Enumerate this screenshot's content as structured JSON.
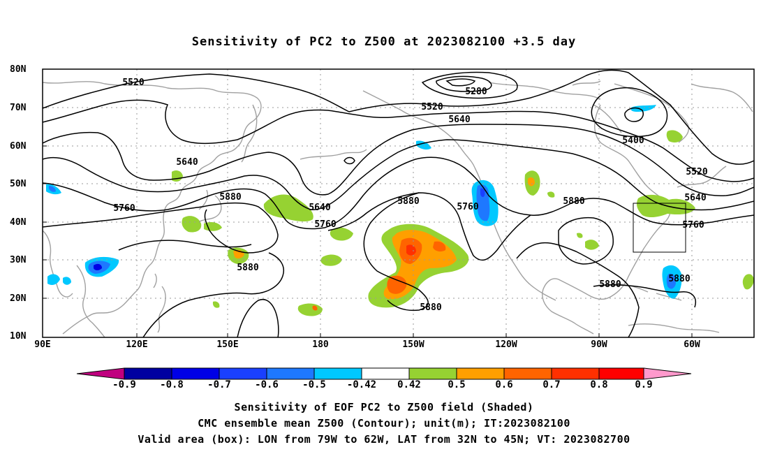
{
  "title": "Sensitivity of PC2 to Z500 at 2023082100 +3.5 day",
  "lat_labels": [
    "80N",
    "70N",
    "60N",
    "50N",
    "40N",
    "30N",
    "20N",
    "10N"
  ],
  "lon_labels": [
    "90E",
    "120E",
    "150E",
    "180",
    "150W",
    "120W",
    "90W",
    "60W"
  ],
  "colorbar": {
    "labels": [
      "-0.9",
      "-0.8",
      "-0.7",
      "-0.6",
      "-0.5",
      "-0.42",
      "0.42",
      "0.5",
      "0.6",
      "0.7",
      "0.8",
      "0.9"
    ],
    "colors": [
      "#c0007f",
      "#0000a0",
      "#0000e6",
      "#1a40ff",
      "#1e78ff",
      "#00c8ff",
      "#ffffff",
      "#96d232",
      "#ff9f00",
      "#ff6400",
      "#ff3000",
      "#ff0000",
      "#ff99cc"
    ]
  },
  "contour_labels": [
    "5520",
    "5280",
    "5520",
    "5640",
    "5400",
    "5520",
    "5640",
    "5760",
    "5640",
    "5880",
    "5640",
    "5760",
    "5760",
    "5880",
    "5760",
    "5880",
    "5880",
    "5880",
    "5880",
    "5880"
  ],
  "captions": [
    "Sensitivity of EOF PC2 to Z500 field (Shaded)",
    "CMC ensemble mean Z500 (Contour); unit(m); IT:2023082100",
    "Valid area (box): LON from 79W to 62W, LAT from 32N to 45N; VT: 2023082700"
  ],
  "valid_box": {
    "lon_min": "79W",
    "lon_max": "62W",
    "lat_min": "32N",
    "lat_max": "45N"
  }
}
